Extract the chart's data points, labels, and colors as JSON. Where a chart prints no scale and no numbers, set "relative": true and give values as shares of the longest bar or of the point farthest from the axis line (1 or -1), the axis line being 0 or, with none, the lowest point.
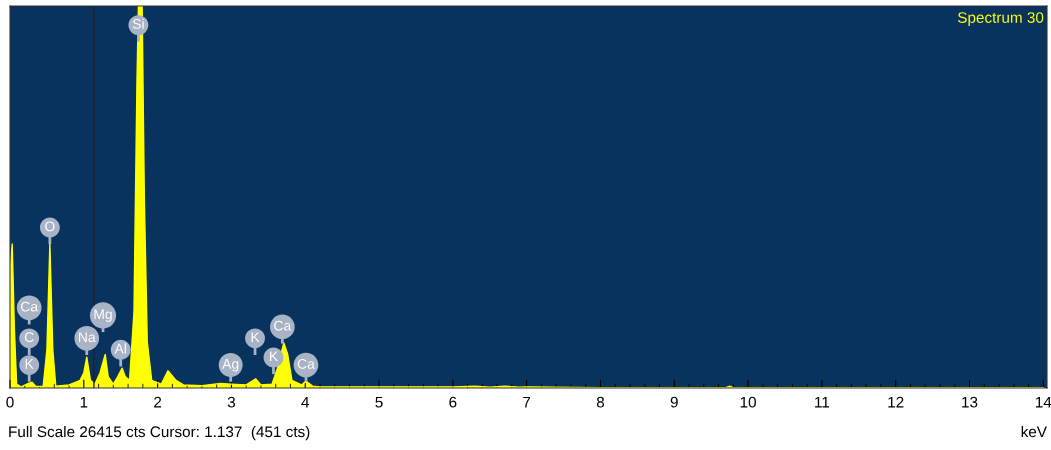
{
  "chart_data": {
    "type": "area",
    "relative": true,
    "xlabel": "keV",
    "color": "#ffff00",
    "x": [
      0.0,
      0.03,
      0.06,
      0.09,
      0.15,
      0.25,
      0.3,
      0.35,
      0.45,
      0.5,
      0.54,
      0.58,
      0.62,
      0.8,
      0.95,
      1.0,
      1.04,
      1.09,
      1.15,
      1.22,
      1.29,
      1.33,
      1.4,
      1.46,
      1.52,
      1.56,
      1.62,
      1.68,
      1.72,
      1.74,
      1.79,
      1.82,
      1.86,
      1.92,
      2.05,
      2.14,
      2.25,
      2.35,
      2.6,
      2.85,
      3.0,
      3.2,
      3.33,
      3.4,
      3.55,
      3.62,
      3.71,
      3.76,
      3.82,
      3.95,
      4.01,
      4.1,
      4.2,
      5.0,
      6.0,
      6.3,
      6.5,
      6.7,
      6.9,
      7.0,
      8.0,
      9.7,
      9.75,
      9.8,
      11.0,
      14.0
    ],
    "values": [
      0.3,
      0.377,
      0.15,
      0.01,
      0.003,
      0.012,
      0.015,
      0.004,
      0.005,
      0.1,
      0.377,
      0.1,
      0.005,
      0.008,
      0.02,
      0.04,
      0.081,
      0.02,
      0.01,
      0.04,
      0.088,
      0.03,
      0.01,
      0.03,
      0.052,
      0.03,
      0.02,
      0.2,
      0.8,
      1.0,
      1.0,
      0.5,
      0.12,
      0.02,
      0.01,
      0.045,
      0.02,
      0.008,
      0.006,
      0.012,
      0.01,
      0.008,
      0.024,
      0.008,
      0.01,
      0.05,
      0.118,
      0.09,
      0.02,
      0.008,
      0.018,
      0.005,
      0.003,
      0.003,
      0.003,
      0.005,
      0.002,
      0.005,
      0.002,
      0.003,
      0.001,
      0.001,
      0.005,
      0.001,
      0.001,
      0.001
    ],
    "xlim": [
      0,
      14.05
    ],
    "xticks": [
      0,
      1,
      2,
      3,
      4,
      5,
      6,
      7,
      8,
      9,
      10,
      11,
      12,
      13,
      14
    ],
    "ref_lines": [
      {
        "axis": "x",
        "value": 1.137,
        "color": "#222222"
      }
    ],
    "annotations": [
      {
        "text": "K",
        "x": 0.26,
        "y": 0.06
      },
      {
        "text": "C",
        "x": 0.26,
        "y": 0.13
      },
      {
        "text": "Ca",
        "x": 0.26,
        "y": 0.21
      },
      {
        "text": "O",
        "x": 0.54,
        "y": 0.42
      },
      {
        "text": "Na",
        "x": 1.04,
        "y": 0.13
      },
      {
        "text": "Mg",
        "x": 1.26,
        "y": 0.19
      },
      {
        "text": "Al",
        "x": 1.5,
        "y": 0.1
      },
      {
        "text": "Si",
        "x": 1.74,
        "y": 0.95
      },
      {
        "text": "Ag",
        "x": 2.99,
        "y": 0.06
      },
      {
        "text": "K",
        "x": 3.32,
        "y": 0.13
      },
      {
        "text": "K",
        "x": 3.57,
        "y": 0.08
      },
      {
        "text": "Ca",
        "x": 3.69,
        "y": 0.16
      },
      {
        "text": "Ca",
        "x": 4.01,
        "y": 0.06
      },
      "Spectrum 30",
      "Full Scale 26415 cts Cursor: 1.137  (451 cts)"
    ]
  }
}
